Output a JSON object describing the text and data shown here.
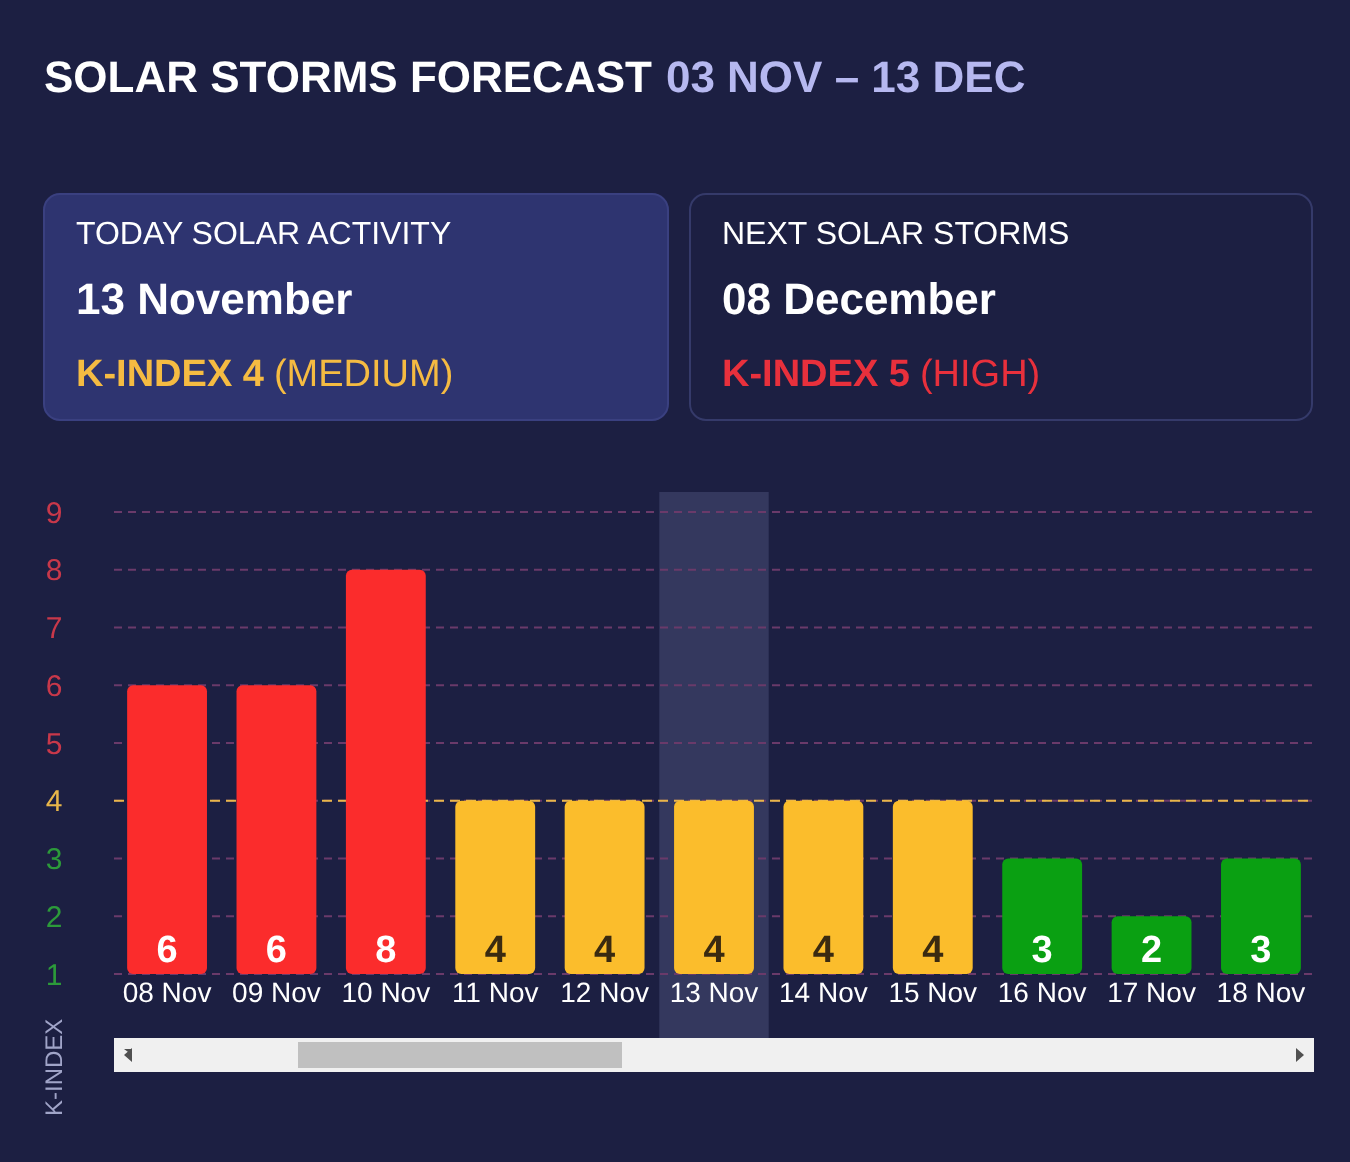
{
  "chart_data": {
    "type": "bar",
    "title": "SOLAR STORMS FORECAST",
    "subtitle": "03 NOV – 13 DEC",
    "ylabel": "K-INDEX",
    "annotations": [
      "TODAY SOLAR ACTIVITY",
      "13 November",
      "K-INDEX 4",
      "(MEDIUM)",
      "NEXT SOLAR STORMS",
      "08 December",
      "K-INDEX 5",
      "(HIGH)"
    ],
    "categories": [
      "08 Nov",
      "09 Nov",
      "10 Nov",
      "11 Nov",
      "12 Nov",
      "13 Nov",
      "14 Nov",
      "15 Nov",
      "16 Nov",
      "17 Nov",
      "18 Nov"
    ],
    "values": [
      6,
      6,
      8,
      4,
      4,
      4,
      4,
      4,
      3,
      2,
      3
    ],
    "colors": [
      "#fb2c2c",
      "#fb2c2c",
      "#fb2c2c",
      "#fbbd2c",
      "#fbbd2c",
      "#fbbd2c",
      "#fbbd2c",
      "#fbbd2c",
      "#0aa012",
      "#0aa012",
      "#0aa012"
    ],
    "ylim": [
      1,
      9
    ],
    "yticks": [
      1,
      2,
      3,
      4,
      5,
      6,
      7,
      8,
      9
    ],
    "ref_lines": [
      {
        "axis": "y",
        "value": 4,
        "color": "#e8b64a",
        "line_style": "dashed"
      }
    ],
    "bands": [
      {
        "axis": "x",
        "from": "13 Nov",
        "to": "13 Nov",
        "color": "#34385e"
      }
    ],
    "grid": "y",
    "data_labels": true
  }
}
